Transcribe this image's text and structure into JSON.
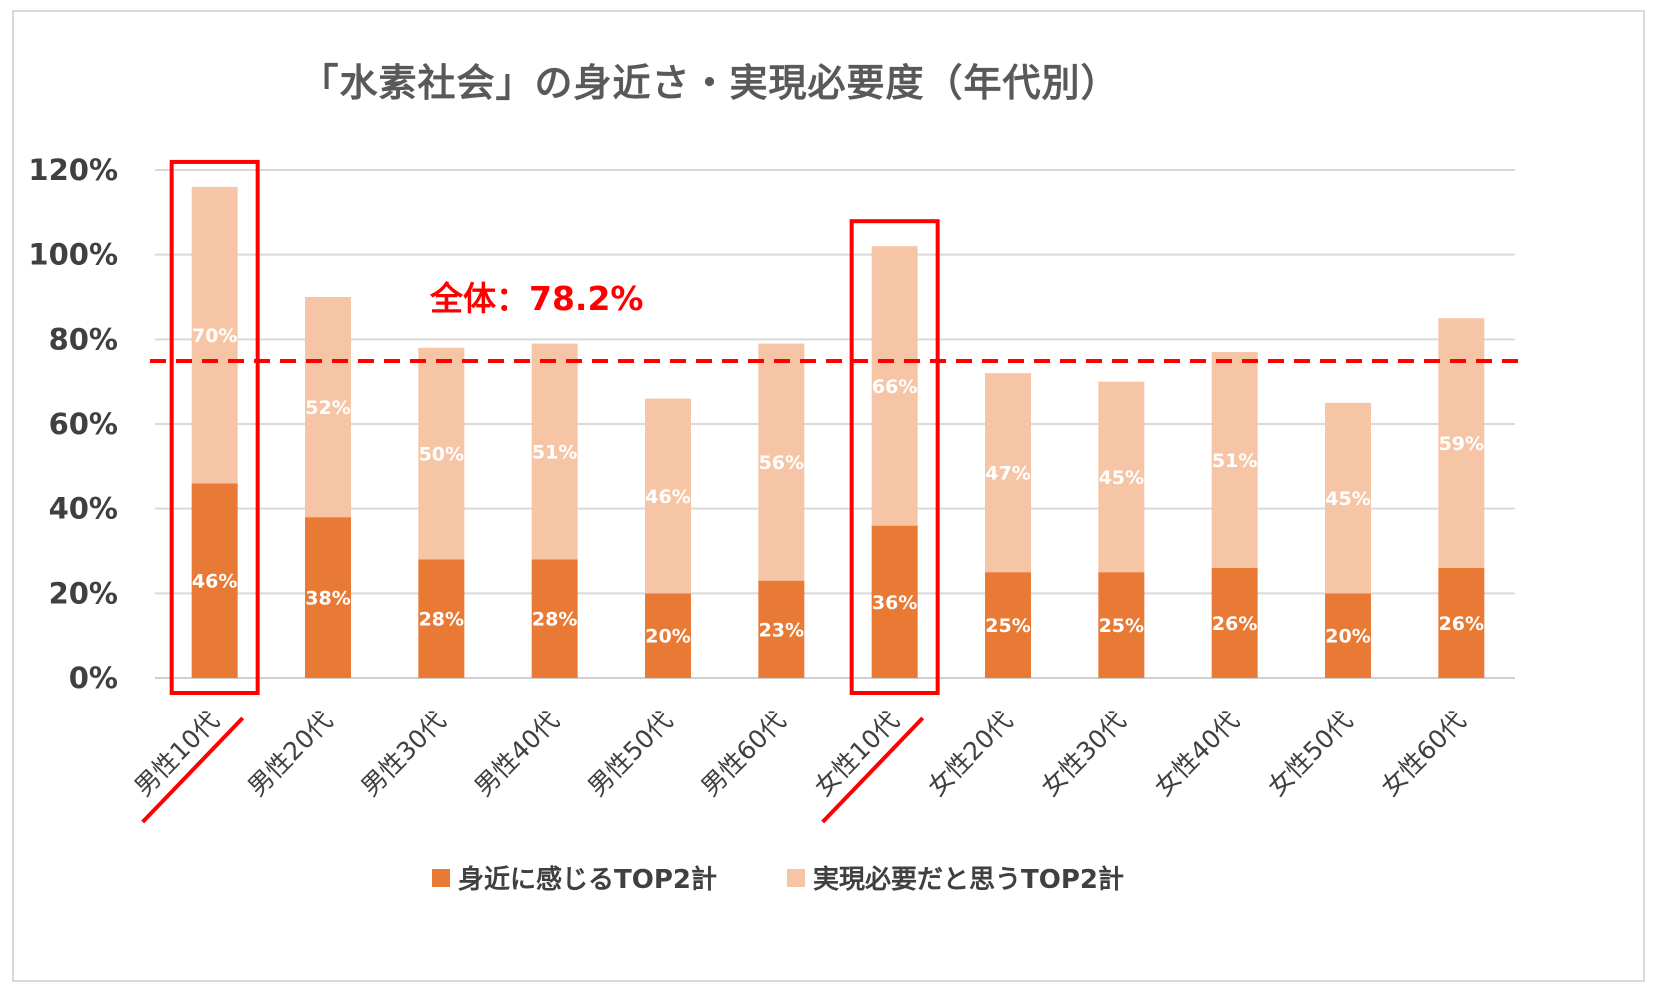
{
  "chart_data": {
    "type": "bar",
    "stacked": true,
    "title": "「水素社会」の身近さ・実現必要度（年代別）",
    "categories": [
      "男性10代",
      "男性20代",
      "男性30代",
      "男性40代",
      "男性50代",
      "男性60代",
      "女性10代",
      "女性20代",
      "女性30代",
      "女性40代",
      "女性50代",
      "女性60代"
    ],
    "series": [
      {
        "name": "身近に感じるTOP2計",
        "color": "#e97a35",
        "values": [
          46,
          38,
          28,
          28,
          20,
          23,
          36,
          25,
          25,
          26,
          20,
          26
        ]
      },
      {
        "name": "実現必要だと思うTOP2計",
        "color": "#f6c5a6",
        "values": [
          70,
          52,
          50,
          51,
          46,
          56,
          66,
          47,
          45,
          51,
          45,
          59
        ]
      }
    ],
    "ylim": [
      0,
      120
    ],
    "yticks": [
      "0%",
      "20%",
      "40%",
      "60%",
      "80%",
      "100%",
      "120%"
    ],
    "grid": true,
    "legend_position": "bottom",
    "reference_line": {
      "value": 78.2,
      "label": "全体：78.2%",
      "color": "#ff0000"
    },
    "highlighted_categories": [
      "男性10代",
      "女性10代"
    ],
    "highlight_color": "#ff0000"
  }
}
